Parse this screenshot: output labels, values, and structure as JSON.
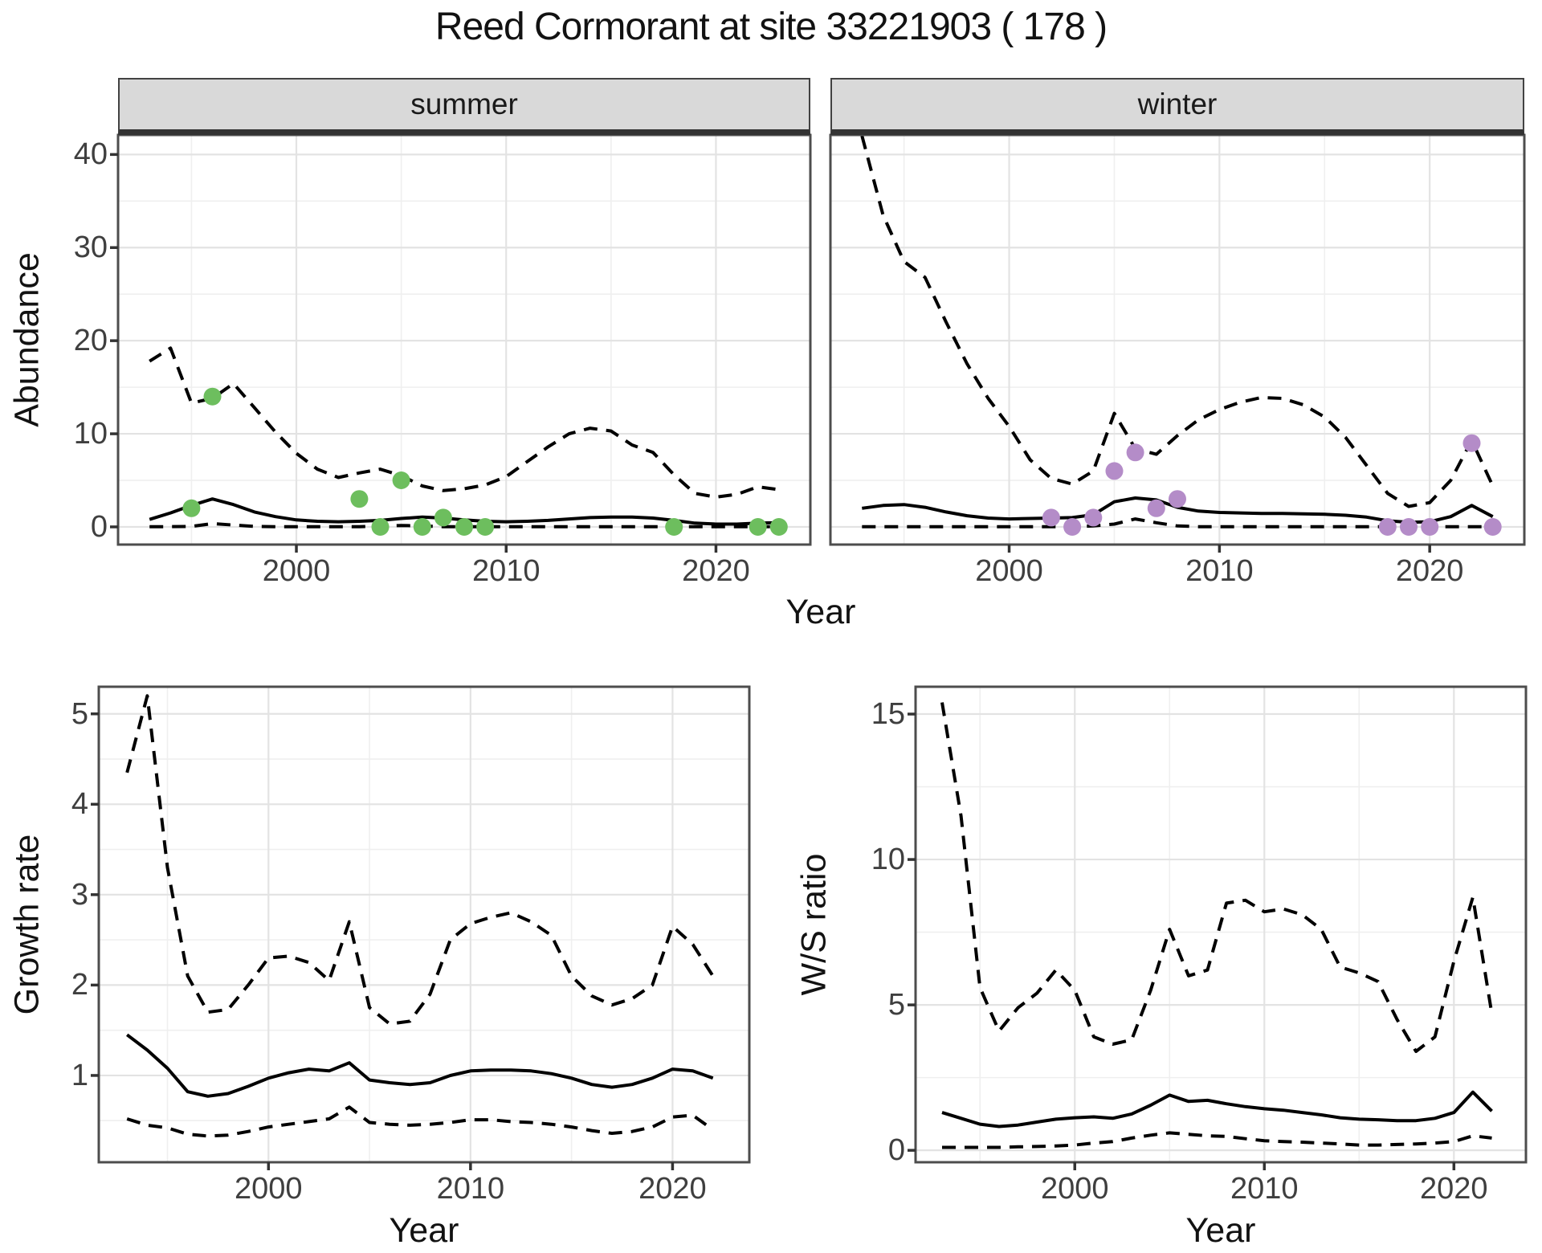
{
  "title": "Reed Cormorant at site 33221903 ( 178 )",
  "colors": {
    "summer_points": "#6dbe5e",
    "winter_points": "#b48cc8",
    "line": "#000000",
    "grid_major": "#e3e3e3",
    "grid_minor": "#efefef",
    "panel_border": "#4d4d4d",
    "strip_background": "#d9d9d9",
    "tick_text": "#3f3f3f"
  },
  "chart_data": [
    {
      "id": "abundance-summer",
      "type": "line",
      "facet_label": "summer",
      "ylabel": "Abundance",
      "xlabel": "Year",
      "xlim": [
        1991.5,
        2024.5
      ],
      "ylim": [
        -1.9,
        42.1
      ],
      "xticks": [
        2000,
        2010,
        2020
      ],
      "yticks": [
        0,
        10,
        20,
        30,
        40
      ],
      "xticks_minor": [
        1995,
        2005,
        2015
      ],
      "yticks_minor": [
        5,
        15,
        25,
        35
      ],
      "grid": true,
      "years": [
        1993,
        1994,
        1995,
        1996,
        1997,
        1998,
        1999,
        2000,
        2001,
        2002,
        2003,
        2004,
        2005,
        2006,
        2007,
        2008,
        2009,
        2010,
        2011,
        2012,
        2013,
        2014,
        2015,
        2016,
        2017,
        2018,
        2019,
        2020,
        2021,
        2022,
        2023
      ],
      "series": [
        {
          "name": "upper-95ci",
          "style": "dashed",
          "values": [
            17.8,
            19.2,
            13.3,
            13.8,
            15.4,
            12.8,
            10.2,
            7.9,
            6.2,
            5.3,
            5.8,
            6.2,
            5.5,
            4.4,
            3.9,
            4.1,
            4.5,
            5.4,
            7.0,
            8.6,
            10.0,
            10.6,
            10.3,
            8.8,
            8.0,
            5.6,
            3.6,
            3.2,
            3.5,
            4.3,
            4.0
          ]
        },
        {
          "name": "modelled-trend",
          "style": "solid",
          "values": [
            0.8,
            1.5,
            2.3,
            3.0,
            2.4,
            1.6,
            1.1,
            0.75,
            0.6,
            0.55,
            0.6,
            0.7,
            0.9,
            1.05,
            0.95,
            0.75,
            0.6,
            0.55,
            0.6,
            0.7,
            0.85,
            1.0,
            1.05,
            1.05,
            0.95,
            0.7,
            0.4,
            0.3,
            0.3,
            0.4,
            0.45
          ]
        },
        {
          "name": "lower-95ci",
          "style": "dashed",
          "values": [
            0.02,
            0.02,
            0.05,
            0.35,
            0.2,
            0.05,
            0.02,
            0.02,
            0.02,
            0.02,
            0.02,
            0.08,
            0.15,
            0.1,
            0.02,
            0.02,
            0.02,
            0.02,
            0.02,
            0.02,
            0.02,
            0.02,
            0.02,
            0.02,
            0.02,
            0.02,
            0.02,
            0.02,
            0.02,
            0.02,
            0.02
          ]
        }
      ],
      "points": {
        "name": "observed-counts-summer",
        "color": "#6dbe5e",
        "data": [
          [
            1995,
            2
          ],
          [
            1996,
            14
          ],
          [
            2003,
            3
          ],
          [
            2004,
            0
          ],
          [
            2005,
            5
          ],
          [
            2006,
            0
          ],
          [
            2007,
            1
          ],
          [
            2008,
            0
          ],
          [
            2009,
            0
          ],
          [
            2018,
            0
          ],
          [
            2022,
            0
          ],
          [
            2023,
            0
          ]
        ]
      }
    },
    {
      "id": "abundance-winter",
      "type": "line",
      "facet_label": "winter",
      "ylabel": "Abundance",
      "xlabel": "Year",
      "xlim": [
        1991.5,
        2024.5
      ],
      "ylim": [
        -1.9,
        42.1
      ],
      "xticks": [
        2000,
        2010,
        2020
      ],
      "yticks": [
        0,
        10,
        20,
        30,
        40
      ],
      "xticks_minor": [
        1995,
        2005,
        2015
      ],
      "yticks_minor": [
        5,
        15,
        25,
        35
      ],
      "grid": true,
      "years": [
        1993,
        1994,
        1995,
        1996,
        1997,
        1998,
        1999,
        2000,
        2001,
        2002,
        2003,
        2004,
        2005,
        2006,
        2007,
        2008,
        2009,
        2010,
        2011,
        2012,
        2013,
        2014,
        2015,
        2016,
        2017,
        2018,
        2019,
        2020,
        2021,
        2022,
        2023
      ],
      "series": [
        {
          "name": "upper-95ci",
          "style": "dashed",
          "values": [
            42,
            33.5,
            28.5,
            26.8,
            22,
            17.5,
            13.8,
            10.8,
            7.2,
            5.2,
            4.6,
            6.0,
            12.2,
            8.4,
            7.8,
            9.8,
            11.5,
            12.6,
            13.4,
            13.9,
            13.8,
            13.1,
            11.8,
            9.6,
            6.6,
            3.6,
            2.2,
            2.6,
            5.0,
            9.3,
            4.4
          ]
        },
        {
          "name": "modelled-trend",
          "style": "solid",
          "values": [
            2.0,
            2.3,
            2.4,
            2.1,
            1.6,
            1.2,
            0.95,
            0.85,
            0.9,
            0.95,
            1.0,
            1.3,
            2.7,
            3.1,
            2.9,
            2.1,
            1.7,
            1.55,
            1.5,
            1.45,
            1.45,
            1.4,
            1.35,
            1.25,
            1.05,
            0.65,
            0.5,
            0.55,
            1.1,
            2.3,
            1.1
          ]
        },
        {
          "name": "lower-95ci",
          "style": "dashed",
          "values": [
            0.02,
            0.02,
            0.02,
            0.02,
            0.02,
            0.02,
            0.02,
            0.02,
            0.02,
            0.02,
            0.02,
            0.1,
            0.3,
            0.85,
            0.45,
            0.1,
            0.02,
            0.02,
            0.02,
            0.02,
            0.02,
            0.02,
            0.02,
            0.02,
            0.02,
            0.02,
            0.02,
            0.02,
            0.02,
            0.02,
            0.02
          ]
        }
      ],
      "points": {
        "name": "observed-counts-winter",
        "color": "#b48cc8",
        "data": [
          [
            2002,
            1
          ],
          [
            2003,
            0
          ],
          [
            2004,
            1
          ],
          [
            2005,
            6
          ],
          [
            2006,
            8
          ],
          [
            2007,
            2
          ],
          [
            2008,
            3
          ],
          [
            2018,
            0
          ],
          [
            2019,
            0
          ],
          [
            2020,
            0
          ],
          [
            2022,
            9
          ],
          [
            2023,
            0
          ]
        ]
      }
    },
    {
      "id": "growth-rate",
      "type": "line",
      "facet_label": "",
      "ylabel": "Growth rate",
      "xlabel": "Year",
      "xlim": [
        1991.6,
        2023.8
      ],
      "ylim": [
        0.04,
        5.3
      ],
      "xticks": [
        2000,
        2010,
        2020
      ],
      "yticks": [
        1,
        2,
        3,
        4,
        5
      ],
      "xticks_minor": [
        1995,
        2005,
        2015
      ],
      "yticks_minor": [
        0.5,
        1.5,
        2.5,
        3.5,
        4.5
      ],
      "grid": true,
      "years": [
        1993,
        1994,
        1995,
        1996,
        1997,
        1998,
        1999,
        2000,
        2001,
        2002,
        2003,
        2004,
        2005,
        2006,
        2007,
        2008,
        2009,
        2010,
        2011,
        2012,
        2013,
        2014,
        2015,
        2016,
        2017,
        2018,
        2019,
        2020,
        2021,
        2022
      ],
      "series": [
        {
          "name": "upper-95ci",
          "style": "dashed",
          "values": [
            4.35,
            5.2,
            3.3,
            2.1,
            1.7,
            1.73,
            2.0,
            2.3,
            2.32,
            2.25,
            2.05,
            2.7,
            1.75,
            1.57,
            1.6,
            1.9,
            2.5,
            2.68,
            2.75,
            2.8,
            2.7,
            2.55,
            2.1,
            1.88,
            1.78,
            1.85,
            2.0,
            2.65,
            2.45,
            2.1
          ]
        },
        {
          "name": "modelled-trend",
          "style": "solid",
          "values": [
            1.45,
            1.28,
            1.08,
            0.82,
            0.77,
            0.8,
            0.88,
            0.97,
            1.03,
            1.07,
            1.05,
            1.14,
            0.95,
            0.92,
            0.9,
            0.92,
            1.0,
            1.05,
            1.06,
            1.06,
            1.05,
            1.02,
            0.97,
            0.9,
            0.87,
            0.9,
            0.97,
            1.07,
            1.05,
            0.97
          ]
        },
        {
          "name": "lower-95ci",
          "style": "dashed",
          "values": [
            0.52,
            0.45,
            0.42,
            0.35,
            0.33,
            0.34,
            0.38,
            0.43,
            0.46,
            0.49,
            0.52,
            0.65,
            0.48,
            0.46,
            0.45,
            0.46,
            0.48,
            0.51,
            0.51,
            0.49,
            0.48,
            0.46,
            0.43,
            0.39,
            0.36,
            0.38,
            0.43,
            0.54,
            0.56,
            0.4
          ]
        }
      ]
    },
    {
      "id": "ws-ratio",
      "type": "line",
      "facet_label": "",
      "ylabel": "W/S ratio",
      "xlabel": "Year",
      "xlim": [
        1991.6,
        2023.8
      ],
      "ylim": [
        -0.41,
        15.94
      ],
      "xticks": [
        2000,
        2010,
        2020
      ],
      "yticks": [
        0,
        5,
        10,
        15
      ],
      "xticks_minor": [
        1995,
        2005,
        2015
      ],
      "yticks_minor": [
        2.5,
        7.5,
        12.5
      ],
      "grid": true,
      "years": [
        1993,
        1994,
        1995,
        1996,
        1997,
        1998,
        1999,
        2000,
        2001,
        2002,
        2003,
        2004,
        2005,
        2006,
        2007,
        2008,
        2009,
        2010,
        2011,
        2012,
        2013,
        2014,
        2015,
        2016,
        2017,
        2018,
        2019,
        2020,
        2021,
        2022
      ],
      "series": [
        {
          "name": "upper-95ci",
          "style": "dashed",
          "values": [
            15.4,
            11.5,
            5.6,
            4.1,
            4.9,
            5.4,
            6.2,
            5.5,
            3.9,
            3.65,
            3.8,
            5.5,
            7.6,
            6.0,
            6.2,
            8.5,
            8.6,
            8.2,
            8.3,
            8.1,
            7.6,
            6.3,
            6.1,
            5.8,
            4.5,
            3.4,
            3.9,
            6.5,
            8.7,
            4.7
          ]
        },
        {
          "name": "modelled-trend",
          "style": "solid",
          "values": [
            1.3,
            1.1,
            0.9,
            0.82,
            0.87,
            0.97,
            1.07,
            1.12,
            1.15,
            1.1,
            1.25,
            1.55,
            1.9,
            1.68,
            1.72,
            1.6,
            1.5,
            1.43,
            1.38,
            1.3,
            1.22,
            1.12,
            1.07,
            1.05,
            1.02,
            1.02,
            1.1,
            1.3,
            2.0,
            1.35
          ]
        },
        {
          "name": "lower-95ci",
          "style": "dashed",
          "values": [
            0.1,
            0.1,
            0.1,
            0.1,
            0.12,
            0.13,
            0.15,
            0.18,
            0.25,
            0.3,
            0.42,
            0.52,
            0.6,
            0.55,
            0.5,
            0.48,
            0.4,
            0.33,
            0.3,
            0.28,
            0.25,
            0.22,
            0.18,
            0.18,
            0.2,
            0.22,
            0.25,
            0.3,
            0.5,
            0.42
          ]
        }
      ]
    }
  ]
}
